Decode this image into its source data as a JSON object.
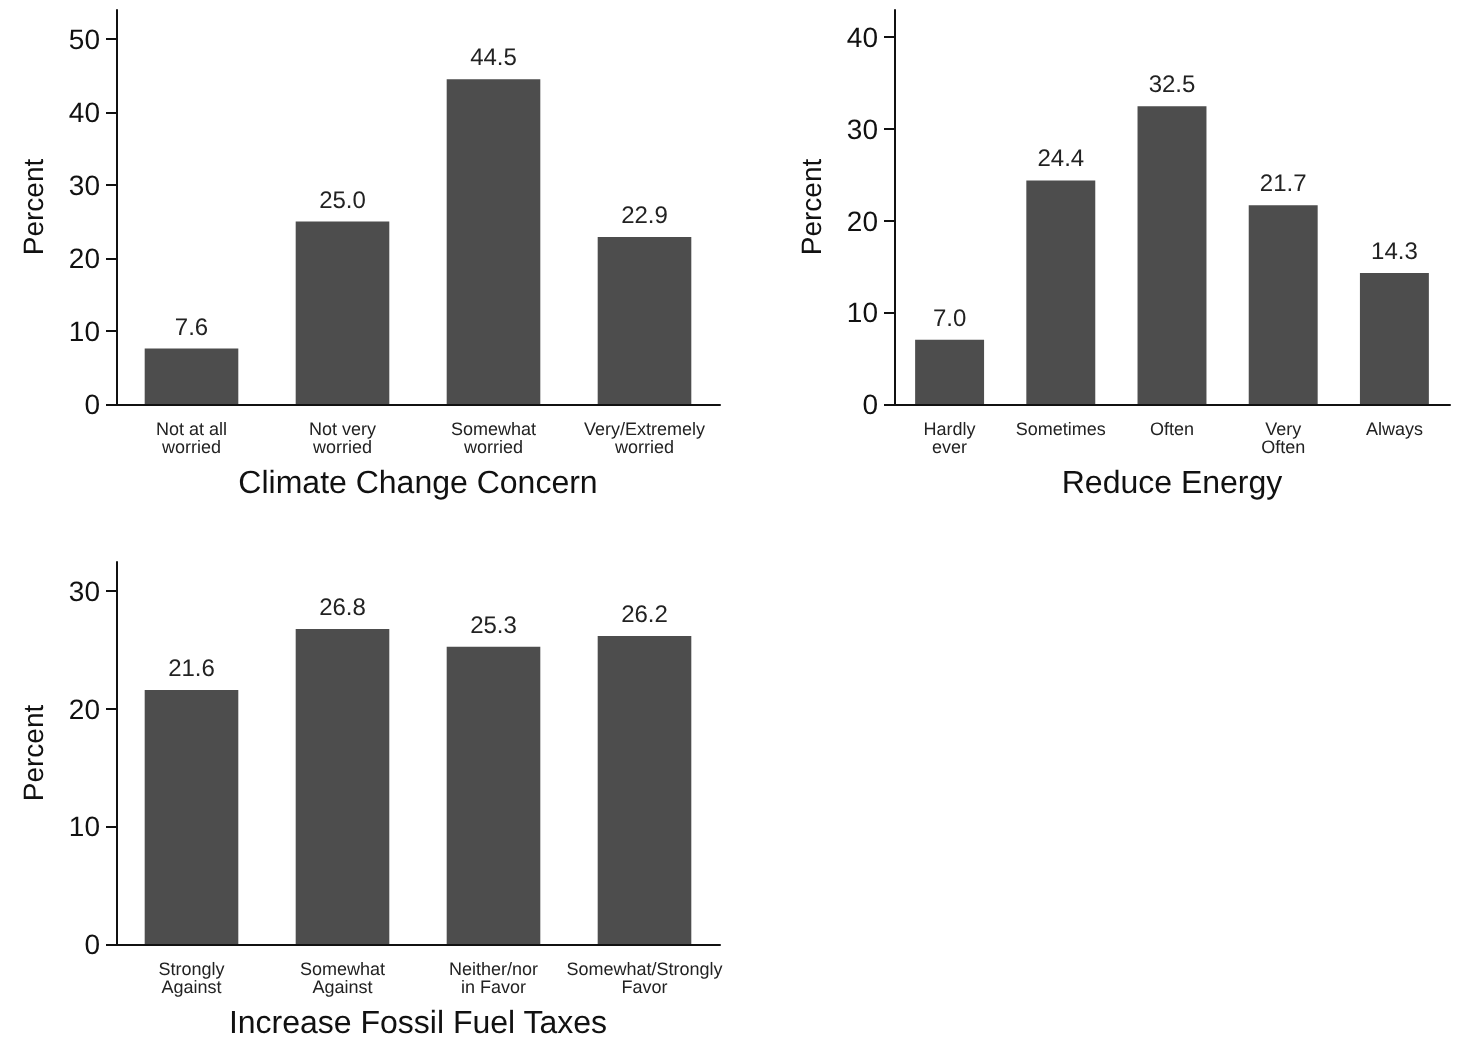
{
  "chart_data": [
    {
      "type": "bar",
      "xlabel": "Climate Change Concern",
      "ylabel": "Percent",
      "categories": [
        "Not at all\nworried",
        "Not very\nworried",
        "Somewhat\nworried",
        "Very/Extremely\nworried"
      ],
      "values": [
        7.6,
        25.0,
        44.5,
        22.9
      ],
      "value_labels": [
        "7.6",
        "25.0",
        "44.5",
        "22.9"
      ],
      "color": "#4d4d4d",
      "ylim": [
        0,
        54
      ],
      "yticks": [
        0,
        10,
        20,
        30,
        40,
        50
      ]
    },
    {
      "type": "bar",
      "xlabel": "Reduce Energy",
      "ylabel": "Percent",
      "categories": [
        "Hardly\never",
        "Sometimes",
        "Often",
        "Very\nOften",
        "Always"
      ],
      "values": [
        7.0,
        24.4,
        32.5,
        21.7,
        14.3
      ],
      "value_labels": [
        "7.0",
        "24.4",
        "32.5",
        "21.7",
        "14.3"
      ],
      "color": "#4d4d4d",
      "ylim": [
        0,
        43
      ],
      "yticks": [
        0,
        10,
        20,
        30,
        40
      ]
    },
    {
      "type": "bar",
      "xlabel": "Increase Fossil Fuel Taxes",
      "ylabel": "Percent",
      "categories": [
        "Strongly\nAgainst",
        "Somewhat\nAgainst",
        "Neither/nor\nin Favor",
        "Somewhat/Strongly\nFavor"
      ],
      "values": [
        21.6,
        26.8,
        25.3,
        26.2
      ],
      "value_labels": [
        "21.6",
        "26.8",
        "25.3",
        "26.2"
      ],
      "color": "#4d4d4d",
      "ylim": [
        0,
        32.5
      ],
      "yticks": [
        0,
        10,
        20,
        30
      ]
    }
  ]
}
